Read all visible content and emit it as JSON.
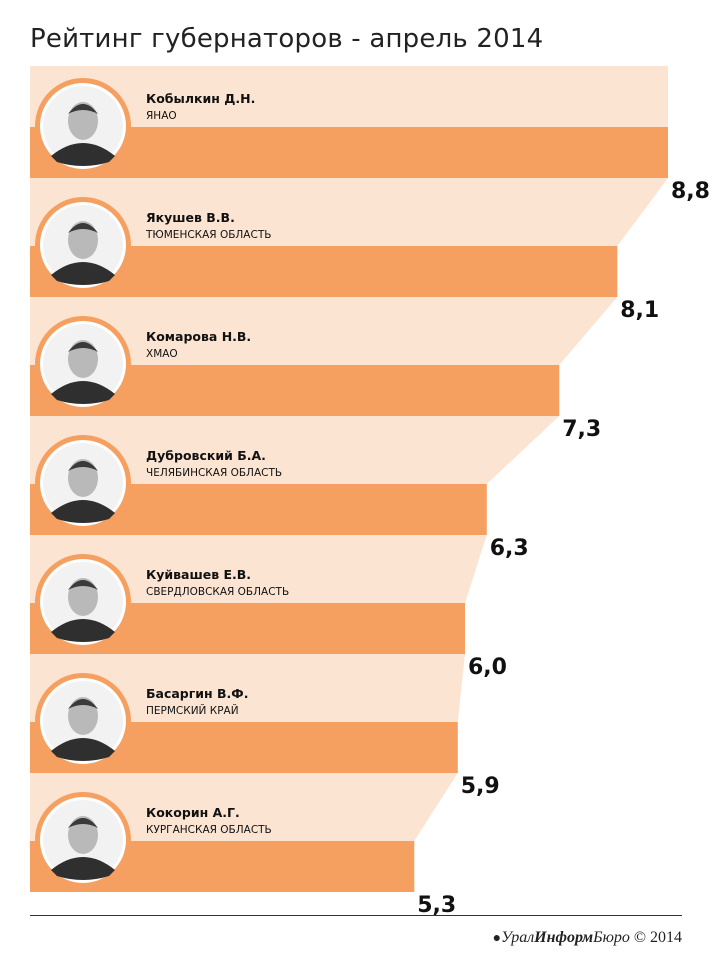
{
  "title": "Рейтинг губернаторов - апрель 2014",
  "brand": {
    "dot": "●",
    "part1": "Урал",
    "part2": "Информ",
    "part3": "Бюро",
    "copyright": " © 2014"
  },
  "colors": {
    "bar": "#F5A060",
    "band": "#FCE4D2",
    "ring": "#F5A060",
    "avatar_bg": "#f2f2f2",
    "text": "#111111"
  },
  "chart_data": {
    "type": "bar",
    "orientation": "horizontal",
    "title": "Рейтинг губернаторов - апрель 2014",
    "xlim": [
      0,
      10
    ],
    "grid": false,
    "legend": "none",
    "categories": [
      "Кобылкин Д.Н.",
      "Якушев В.В.",
      "Комарова Н.В.",
      "Дубровский Б.А.",
      "Куйвашев Е.В.",
      "Басаргин В.Ф.",
      "Кокорин А.Г."
    ],
    "regions": [
      "ЯНАО",
      "ТЮМЕНСКАЯ ОБЛАСТЬ",
      "ХМАО",
      "ЧЕЛЯБИНСКАЯ ОБЛАСТЬ",
      "СВЕРДЛОВСКАЯ ОБЛАСТЬ",
      "ПЕРМСКИЙ КРАЙ",
      "КУРГАНСКАЯ ОБЛАСТЬ"
    ],
    "values": [
      8.8,
      8.1,
      7.3,
      6.3,
      6.0,
      5.9,
      5.3
    ],
    "value_labels": [
      "8,8",
      "8,1",
      "7,3",
      "6,3",
      "6,0",
      "5,9",
      "5,3"
    ]
  }
}
